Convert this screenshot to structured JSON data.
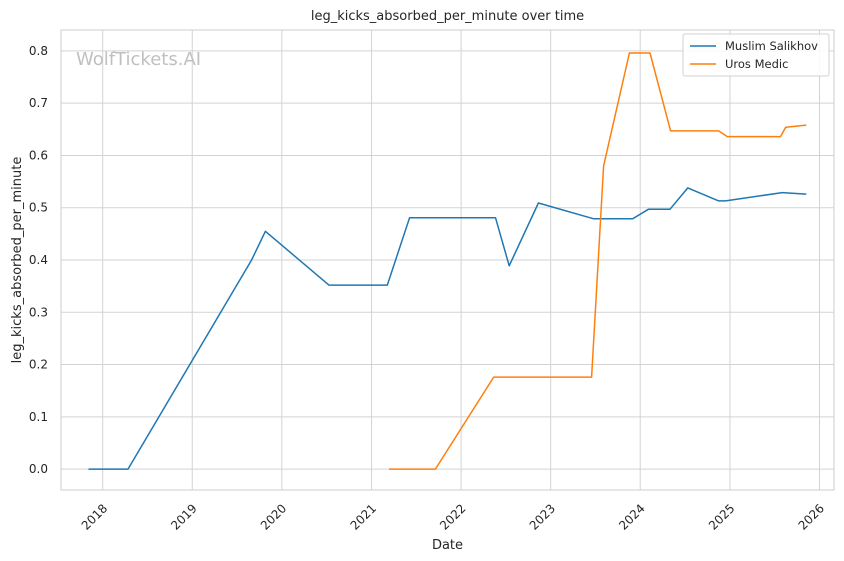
{
  "watermark": "WolfTickets.AI",
  "colors": {
    "series0": "#1f77b4",
    "series1": "#ff7f0e",
    "grid": "#d3d3d3",
    "frame": "#cccccc"
  },
  "chart_data": {
    "type": "line",
    "title": "leg_kicks_absorbed_per_minute over time",
    "xlabel": "Date",
    "ylabel": "leg_kicks_absorbed_per_minute",
    "xlim": [
      "2017-07-15",
      "2026-03-01"
    ],
    "ylim": [
      -0.04,
      0.84
    ],
    "grid": true,
    "legend_position": "top-right",
    "x_ticks": [
      "2018",
      "2019",
      "2020",
      "2021",
      "2022",
      "2023",
      "2024",
      "2025",
      "2026"
    ],
    "y_ticks": [
      "0.0",
      "0.1",
      "0.2",
      "0.3",
      "0.4",
      "0.5",
      "0.6",
      "0.7",
      "0.8"
    ],
    "series": [
      {
        "name": "Muslim Salikhov",
        "color": "#1f77b4",
        "points": [
          [
            "2017-11-04",
            0.0
          ],
          [
            "2018-04-14",
            0.0
          ],
          [
            "2019-08-31",
            0.4
          ],
          [
            "2019-10-26",
            0.455
          ],
          [
            "2020-07-11",
            0.352
          ],
          [
            "2021-03-06",
            0.352
          ],
          [
            "2021-06-05",
            0.481
          ],
          [
            "2022-05-21",
            0.481
          ],
          [
            "2022-07-16",
            0.389
          ],
          [
            "2022-11-12",
            0.509
          ],
          [
            "2023-06-24",
            0.479
          ],
          [
            "2023-12-02",
            0.479
          ],
          [
            "2024-02-03",
            0.497
          ],
          [
            "2024-05-01",
            0.497
          ],
          [
            "2024-07-13",
            0.538
          ],
          [
            "2024-11-16",
            0.513
          ],
          [
            "2024-12-14",
            0.513
          ],
          [
            "2025-08-02",
            0.529
          ],
          [
            "2025-11-08",
            0.526
          ]
        ]
      },
      {
        "name": "Uros Medic",
        "color": "#ff7f0e",
        "points": [
          [
            "2021-03-13",
            0.0
          ],
          [
            "2021-09-18",
            0.0
          ],
          [
            "2022-05-14",
            0.176
          ],
          [
            "2023-06-17",
            0.176
          ],
          [
            "2023-08-05",
            0.58
          ],
          [
            "2023-11-18",
            0.796
          ],
          [
            "2024-02-10",
            0.796
          ],
          [
            "2024-05-04",
            0.647
          ],
          [
            "2024-11-16",
            0.647
          ],
          [
            "2024-12-21",
            0.636
          ],
          [
            "2025-07-26",
            0.636
          ],
          [
            "2025-08-16",
            0.654
          ],
          [
            "2025-11-08",
            0.658
          ]
        ]
      }
    ]
  }
}
